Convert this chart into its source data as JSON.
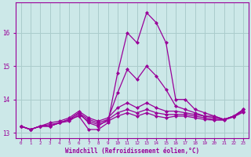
{
  "xlabel": "Windchill (Refroidissement éolien,°C)",
  "background_color": "#cce8e8",
  "grid_color": "#aacccc",
  "line_color": "#990099",
  "x_values": [
    0,
    1,
    2,
    3,
    4,
    5,
    6,
    7,
    8,
    9,
    10,
    11,
    12,
    13,
    14,
    15,
    16,
    17,
    18,
    19,
    20,
    21,
    22,
    23
  ],
  "lines": [
    [
      13.2,
      13.1,
      13.2,
      13.2,
      13.3,
      13.4,
      13.5,
      13.1,
      13.1,
      13.3,
      14.8,
      16.0,
      15.7,
      16.6,
      16.3,
      15.7,
      14.0,
      14.0,
      13.7,
      13.6,
      13.5,
      13.4,
      13.5,
      13.7
    ],
    [
      13.2,
      13.1,
      13.2,
      13.2,
      13.3,
      13.4,
      13.6,
      13.3,
      13.2,
      13.4,
      14.2,
      14.9,
      14.6,
      15.0,
      14.7,
      14.3,
      13.8,
      13.7,
      13.6,
      13.5,
      13.5,
      13.4,
      13.5,
      13.7
    ],
    [
      13.2,
      13.1,
      13.2,
      13.3,
      13.35,
      13.45,
      13.65,
      13.45,
      13.35,
      13.45,
      13.75,
      13.9,
      13.75,
      13.9,
      13.75,
      13.65,
      13.65,
      13.6,
      13.55,
      13.5,
      13.45,
      13.4,
      13.5,
      13.7
    ],
    [
      13.2,
      13.1,
      13.2,
      13.25,
      13.3,
      13.4,
      13.6,
      13.4,
      13.3,
      13.4,
      13.6,
      13.7,
      13.6,
      13.7,
      13.6,
      13.55,
      13.55,
      13.55,
      13.5,
      13.45,
      13.4,
      13.4,
      13.5,
      13.65
    ],
    [
      13.2,
      13.1,
      13.2,
      13.2,
      13.3,
      13.35,
      13.55,
      13.35,
      13.25,
      13.35,
      13.5,
      13.6,
      13.5,
      13.6,
      13.5,
      13.45,
      13.5,
      13.5,
      13.45,
      13.4,
      13.38,
      13.38,
      13.48,
      13.62
    ]
  ],
  "ylim": [
    12.85,
    16.9
  ],
  "yticks": [
    13,
    14,
    15,
    16
  ],
  "xlim": [
    -0.5,
    23.5
  ],
  "marker": "D",
  "markersize": 2.0,
  "linewidth": 0.9
}
